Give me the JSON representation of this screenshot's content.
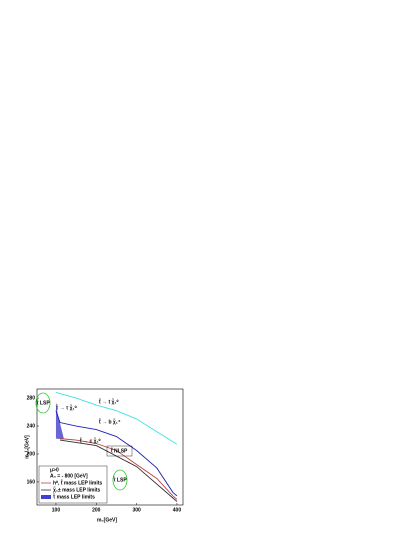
{
  "chart_data": {
    "type": "line",
    "xlabel": "m₀[GeV]",
    "ylabel": "m₁/₂[GeV]",
    "xlim": [
      53,
      415
    ],
    "ylim": [
      127,
      293
    ],
    "xticks": [
      100,
      200,
      300,
      400
    ],
    "yticks": [
      160,
      200,
      240,
      280
    ],
    "series": [
      {
        "color": "#40e0e8",
        "x": [
          100,
          150,
          200,
          250,
          300,
          350,
          400
        ],
        "values": [
          288,
          280,
          270,
          262,
          250,
          232,
          214
        ]
      },
      {
        "color": "#2020b0",
        "x": [
          100,
          110,
          150,
          200,
          250,
          300,
          350,
          390,
          400
        ],
        "values": [
          262,
          245,
          240,
          235,
          225,
          205,
          180,
          145,
          140
        ]
      },
      {
        "color": "#c04040",
        "x": [
          110,
          150,
          200,
          250,
          300,
          350,
          390,
          400
        ],
        "values": [
          222,
          220,
          215,
          205,
          185,
          165,
          140,
          135
        ]
      },
      {
        "color": "#303030",
        "x": [
          110,
          200,
          300,
          400
        ],
        "values": [
          220,
          212,
          182,
          132
        ]
      }
    ],
    "region": {
      "color": "#4040d0",
      "x": [
        100,
        100,
        120,
        104
      ],
      "values": [
        275,
        222,
        221,
        258
      ]
    },
    "annotations": [
      "τ̃ LSP",
      "τ̃ → τ χ̃₁⁰",
      "t̃ → t χ̃₁⁰",
      "t̃ → b χ̃₁⁺",
      "t̃ → c χ̃₁⁰",
      "t̃ NLSP",
      "τ̃ LSP"
    ],
    "legend_title": [
      "μ>0",
      "A₀ = - 800 [GeV]"
    ],
    "legend": [
      {
        "label": "h⁰, t̃   mass LEP limits",
        "color": "#c04040"
      },
      {
        "label": "χ̃₁±   mass LEP limits",
        "color": "#303030"
      },
      {
        "label": "τ̃   mass LEP limits",
        "color": "#4040d0"
      }
    ]
  }
}
